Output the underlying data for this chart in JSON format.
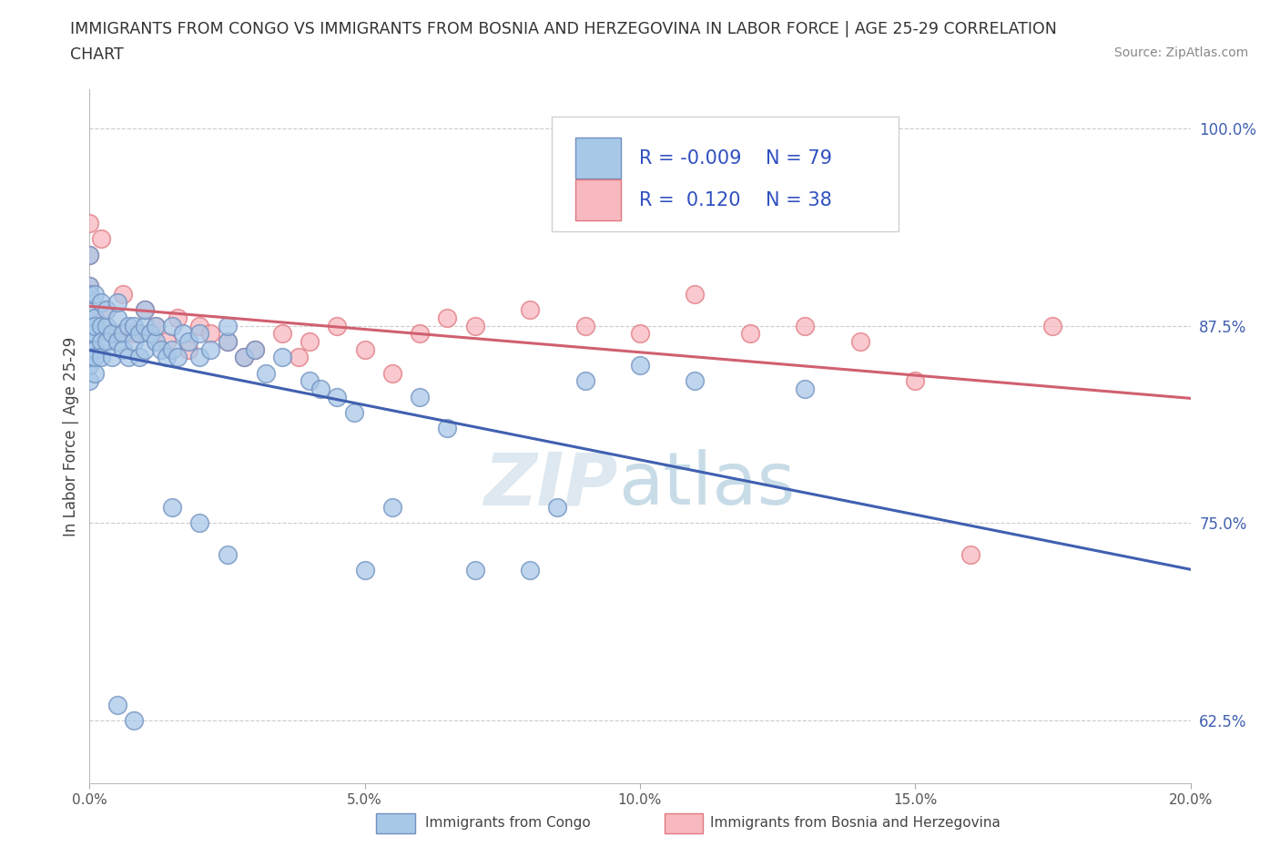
{
  "title_line1": "IMMIGRANTS FROM CONGO VS IMMIGRANTS FROM BOSNIA AND HERZEGOVINA IN LABOR FORCE | AGE 25-29 CORRELATION",
  "title_line2": "CHART",
  "source_text": "Source: ZipAtlas.com",
  "ylabel": "In Labor Force | Age 25-29",
  "xlim": [
    0.0,
    0.2
  ],
  "ylim": [
    0.585,
    1.025
  ],
  "yticks": [
    0.625,
    0.75,
    0.875,
    1.0
  ],
  "ytick_labels": [
    "62.5%",
    "75.0%",
    "87.5%",
    "100.0%"
  ],
  "xticks": [
    0.0,
    0.05,
    0.1,
    0.15,
    0.2
  ],
  "xtick_labels": [
    "0.0%",
    "5.0%",
    "10.0%",
    "15.0%",
    "20.0%"
  ],
  "congo_color": "#a8c8e8",
  "bosnia_color": "#f8b8c0",
  "congo_edge": "#7090c0",
  "bosnia_edge": "#e07880",
  "congo_line_color": "#4060b0",
  "bosnia_line_color": "#d06070",
  "congo_R": -0.009,
  "congo_N": 79,
  "bosnia_R": 0.12,
  "bosnia_N": 38,
  "legend_text_color": "#3050c0",
  "legend_label_color": "#303030",
  "watermark_zip_color": "#dde8f0",
  "watermark_atlas_color": "#c8dce8"
}
